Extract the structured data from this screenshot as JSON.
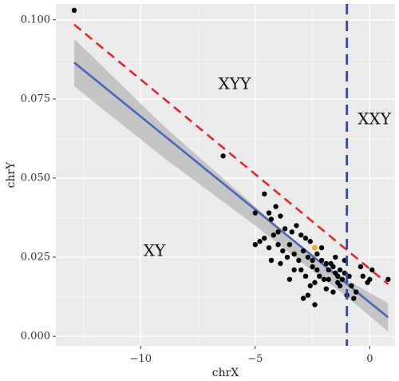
{
  "chart_data": {
    "type": "scatter",
    "xlabel": "chrX",
    "ylabel": "chrY",
    "xlim": [
      -13.7,
      1.1
    ],
    "ylim": [
      -0.003,
      0.105
    ],
    "x_ticks": [
      -10,
      -5,
      0
    ],
    "x_tick_labels": [
      "−10",
      "−5",
      "0"
    ],
    "y_ticks": [
      0.0,
      0.025,
      0.05,
      0.075,
      0.1
    ],
    "y_tick_labels": [
      "0.000",
      "0.025",
      "0.050",
      "0.075",
      "0.100"
    ],
    "grid": true,
    "background": "#ebebeb",
    "region_labels": [
      {
        "text": "XYY",
        "x": -5.9,
        "y": 0.0795
      },
      {
        "text": "XXY",
        "x": 0.2,
        "y": 0.0684
      },
      {
        "text": "XY",
        "x": -9.4,
        "y": 0.0268
      }
    ],
    "points": [
      {
        "x": -12.9,
        "y": 0.103
      },
      {
        "x": -6.4,
        "y": 0.057
      },
      {
        "x": -4.6,
        "y": 0.045
      },
      {
        "x": -4.1,
        "y": 0.041
      },
      {
        "x": -4.4,
        "y": 0.039
      },
      {
        "x": -5.0,
        "y": 0.039
      },
      {
        "x": -4.3,
        "y": 0.037
      },
      {
        "x": -3.9,
        "y": 0.038
      },
      {
        "x": -3.7,
        "y": 0.034
      },
      {
        "x": -4.0,
        "y": 0.033
      },
      {
        "x": -4.2,
        "y": 0.032
      },
      {
        "x": -4.6,
        "y": 0.031
      },
      {
        "x": -4.8,
        "y": 0.03
      },
      {
        "x": -5.0,
        "y": 0.029
      },
      {
        "x": -4.4,
        "y": 0.028
      },
      {
        "x": -4.0,
        "y": 0.029
      },
      {
        "x": -3.4,
        "y": 0.033
      },
      {
        "x": -3.2,
        "y": 0.035
      },
      {
        "x": -3.0,
        "y": 0.032
      },
      {
        "x": -2.8,
        "y": 0.031
      },
      {
        "x": -2.6,
        "y": 0.03
      },
      {
        "x": -3.5,
        "y": 0.029
      },
      {
        "x": -3.8,
        "y": 0.027
      },
      {
        "x": -3.3,
        "y": 0.026
      },
      {
        "x": -3.6,
        "y": 0.025
      },
      {
        "x": -3.1,
        "y": 0.024
      },
      {
        "x": -2.9,
        "y": 0.027
      },
      {
        "x": -2.7,
        "y": 0.025
      },
      {
        "x": -2.5,
        "y": 0.022
      },
      {
        "x": -2.3,
        "y": 0.026
      },
      {
        "x": -2.1,
        "y": 0.024
      },
      {
        "x": -1.9,
        "y": 0.023
      },
      {
        "x": -1.8,
        "y": 0.021
      },
      {
        "x": -1.7,
        "y": 0.023
      },
      {
        "x": -1.6,
        "y": 0.022
      },
      {
        "x": -1.5,
        "y": 0.02
      },
      {
        "x": -1.4,
        "y": 0.019
      },
      {
        "x": -1.3,
        "y": 0.021
      },
      {
        "x": -1.2,
        "y": 0.018
      },
      {
        "x": -1.1,
        "y": 0.02
      },
      {
        "x": -2.0,
        "y": 0.018
      },
      {
        "x": -2.2,
        "y": 0.019
      },
      {
        "x": -2.4,
        "y": 0.017
      },
      {
        "x": -2.6,
        "y": 0.016
      },
      {
        "x": -2.8,
        "y": 0.019
      },
      {
        "x": -3.0,
        "y": 0.021
      },
      {
        "x": -3.3,
        "y": 0.021
      },
      {
        "x": -3.5,
        "y": 0.018
      },
      {
        "x": -2.7,
        "y": 0.013
      },
      {
        "x": -2.4,
        "y": 0.01
      },
      {
        "x": -2.9,
        "y": 0.012
      },
      {
        "x": -1.9,
        "y": 0.015
      },
      {
        "x": -1.6,
        "y": 0.014
      },
      {
        "x": -1.3,
        "y": 0.016
      },
      {
        "x": -1.0,
        "y": 0.013
      },
      {
        "x": -0.8,
        "y": 0.016
      },
      {
        "x": -0.6,
        "y": 0.014
      },
      {
        "x": -0.7,
        "y": 0.012
      },
      {
        "x": -0.4,
        "y": 0.022
      },
      {
        "x": -0.3,
        "y": 0.019
      },
      {
        "x": -0.1,
        "y": 0.017
      },
      {
        "x": 0.0,
        "y": 0.018
      },
      {
        "x": 0.1,
        "y": 0.021
      },
      {
        "x": 0.8,
        "y": 0.018
      },
      {
        "x": -1.1,
        "y": 0.024
      },
      {
        "x": -1.5,
        "y": 0.025
      },
      {
        "x": -2.1,
        "y": 0.028
      },
      {
        "x": -3.9,
        "y": 0.023
      },
      {
        "x": -4.3,
        "y": 0.024
      },
      {
        "x": -1.8,
        "y": 0.018
      },
      {
        "x": -2.3,
        "y": 0.021
      },
      {
        "x": -1.4,
        "y": 0.017
      },
      {
        "x": -2.5,
        "y": 0.024
      },
      {
        "x": -0.9,
        "y": 0.019
      }
    ],
    "highlight_point": {
      "x": -2.4,
      "y": 0.028,
      "color": "#f5a623"
    },
    "point_color": "#000000",
    "fit_line": {
      "x": [
        -12.9,
        0.8
      ],
      "y": [
        0.0865,
        0.006
      ],
      "color": "#4a66b8"
    },
    "confidence_band": {
      "x": [
        -12.9,
        -9,
        -5,
        -3,
        -1,
        0.8
      ],
      "upper": [
        0.094,
        0.0665,
        0.041,
        0.0284,
        0.0178,
        0.0105
      ],
      "lower": [
        0.079,
        0.0565,
        0.035,
        0.0235,
        0.0125,
        0.0015
      ],
      "color": "#bdbdbd"
    },
    "boundary_line": {
      "x": [
        -12.9,
        0.8
      ],
      "y": [
        0.0985,
        0.0165
      ],
      "color": "#e8262a",
      "style": "dashed"
    },
    "vertical_line": {
      "x": -1.0,
      "color": "#3345a8",
      "style": "dashed"
    }
  }
}
